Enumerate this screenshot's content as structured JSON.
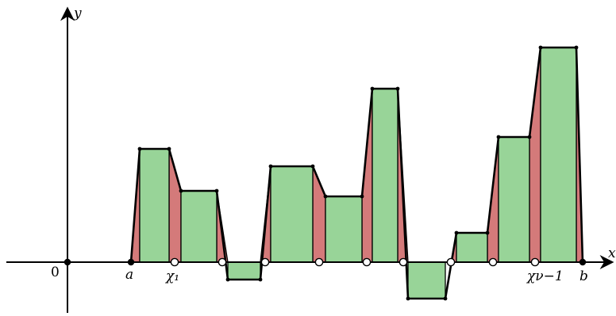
{
  "labels": {
    "y_axis": "y",
    "x_axis": "x",
    "origin": "0",
    "a": "a",
    "b": "b",
    "chi_1": "χ₁",
    "chi_nu_minus_1": "χν−1"
  },
  "colors": {
    "rect_fill": "#98d498",
    "trap_fill": "#d47a7a",
    "stroke": "#000000",
    "open_point_fill": "#ffffff"
  }
}
